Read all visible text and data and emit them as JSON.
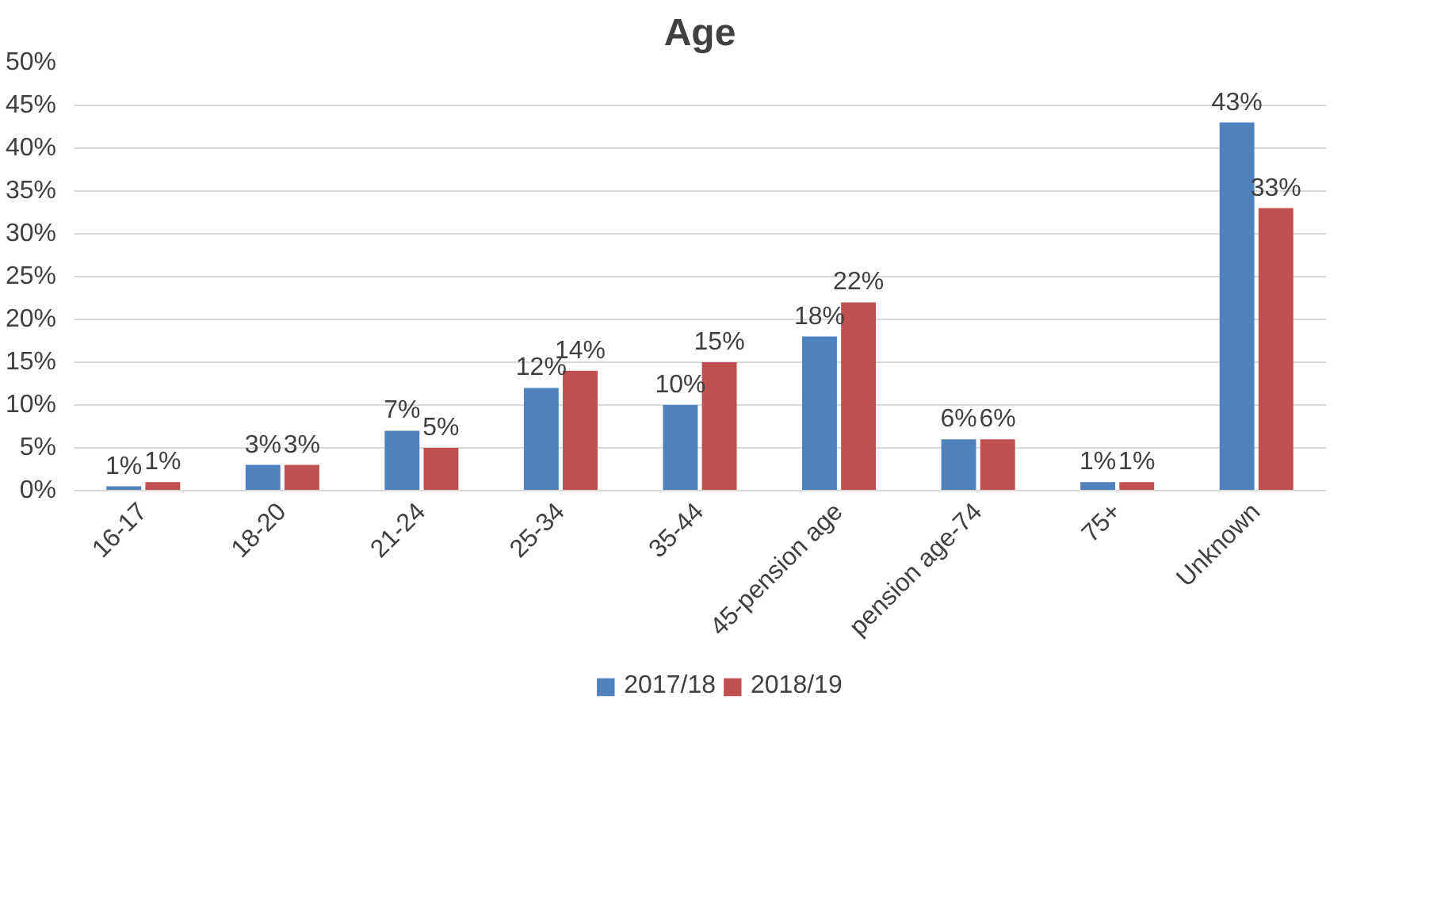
{
  "chart_data": {
    "type": "bar",
    "title": "Age",
    "categories": [
      "16-17",
      "18-20",
      "21-24",
      "25-34",
      "35-44",
      "45-pension age",
      "pension age-74",
      "75+",
      "Unknown"
    ],
    "series": [
      {
        "name": "2017/18",
        "color": "#4f81bd",
        "values": [
          0.5,
          3,
          7,
          12,
          10,
          18,
          6,
          1,
          43
        ],
        "value_labels": [
          "1%",
          "3%",
          "7%",
          "12%",
          "10%",
          "18%",
          "6%",
          "1%",
          "43%"
        ]
      },
      {
        "name": "2018/19",
        "color": "#c0504d",
        "values": [
          1,
          3,
          5,
          14,
          15,
          22,
          6,
          1,
          33
        ],
        "value_labels": [
          "1%",
          "3%",
          "5%",
          "14%",
          "15%",
          "22%",
          "6%",
          "1%",
          "33%"
        ]
      }
    ],
    "ylim": [
      0,
      50
    ],
    "yticks": [
      {
        "value": 0,
        "label": "0%"
      },
      {
        "value": 5,
        "label": "5%"
      },
      {
        "value": 10,
        "label": "10%"
      },
      {
        "value": 15,
        "label": "15%"
      },
      {
        "value": 20,
        "label": "20%"
      },
      {
        "value": 25,
        "label": "25%"
      },
      {
        "value": 30,
        "label": "30%"
      },
      {
        "value": 35,
        "label": "35%"
      },
      {
        "value": 40,
        "label": "40%"
      },
      {
        "value": 45,
        "label": "45%"
      },
      {
        "value": 50,
        "label": "50%"
      }
    ],
    "grid": "y",
    "legend": "bottom"
  }
}
